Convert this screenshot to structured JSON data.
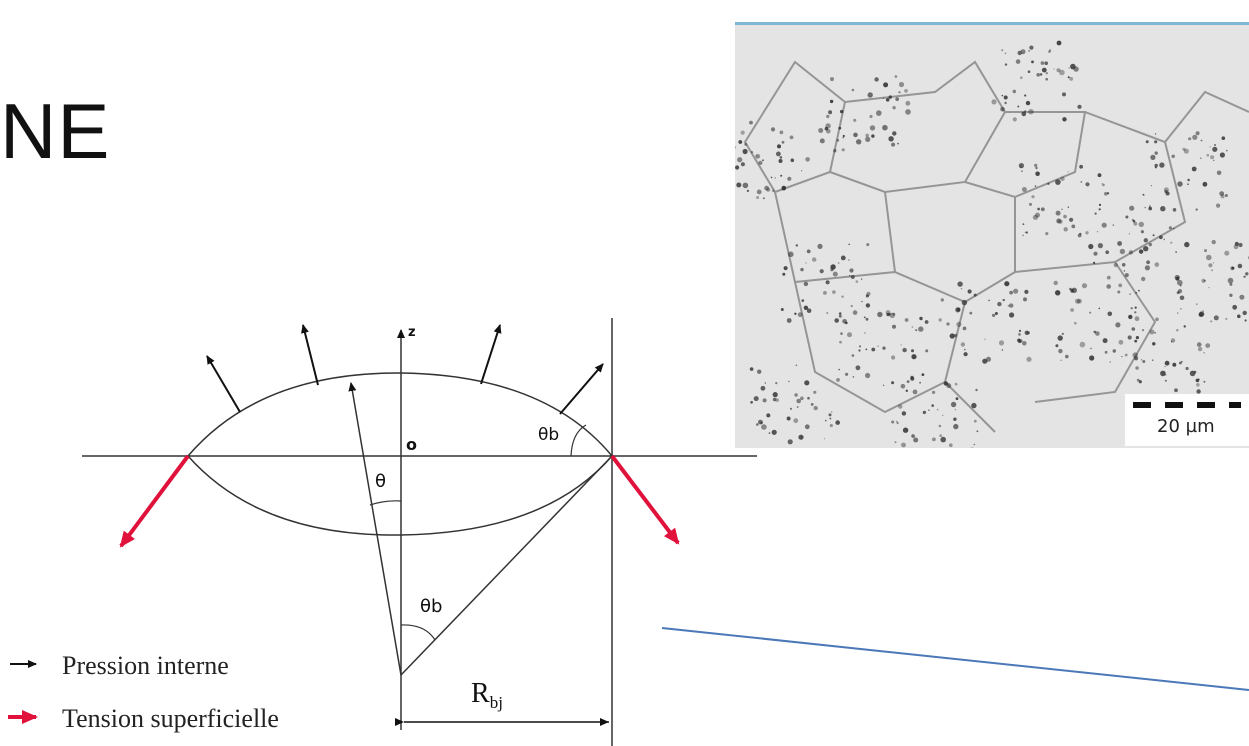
{
  "slide": {
    "title_fragment": "NE"
  },
  "diagram": {
    "axis_label_z": "z",
    "origin_label": "o",
    "angle_theta": "θ",
    "angle_theta_b": "θb",
    "radius_label_main": "R",
    "radius_label_sub": "bj",
    "legend": [
      {
        "label": "Pression interne",
        "color": "#111111"
      },
      {
        "label": "Tension superficielle",
        "color": "#e0113a"
      }
    ]
  },
  "micrograph": {
    "scale_bar_label": "20 µm"
  },
  "colors": {
    "tension_arrow": "#e0113a",
    "pressure_arrow": "#111111",
    "accent_line": "#4a78b8",
    "top_border": "#7fb6d6"
  }
}
